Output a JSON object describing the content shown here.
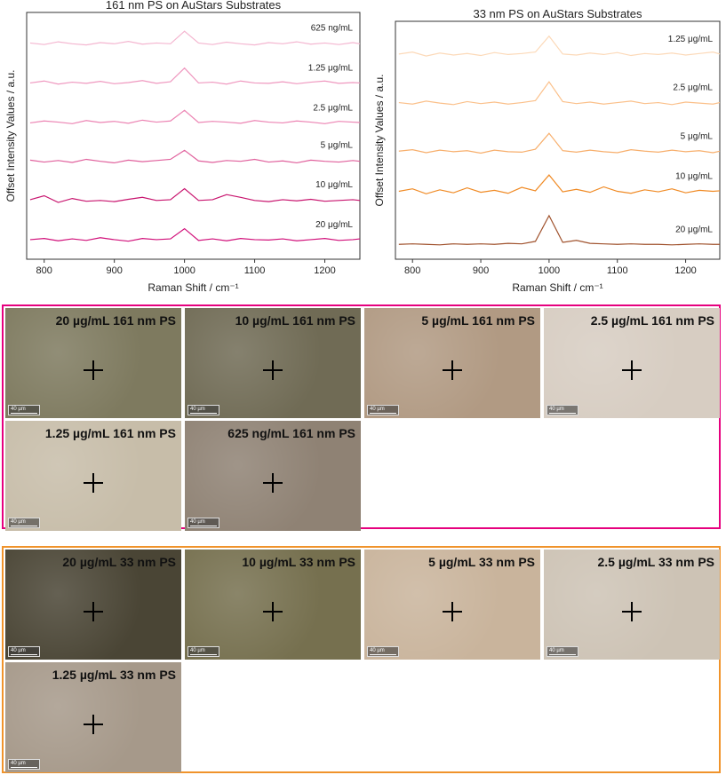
{
  "chart_data": [
    {
      "type": "line",
      "title": "161 nm PS on AuStars Substrates",
      "x_label": "Raman Shift / cm⁻¹",
      "y_label": "Offset Intensity Values / a.u.",
      "x": [
        780,
        800,
        820,
        840,
        860,
        880,
        900,
        920,
        940,
        960,
        980,
        1000,
        1020,
        1040,
        1060,
        1080,
        1100,
        1120,
        1140,
        1160,
        1180,
        1200,
        1220,
        1240,
        1250
      ],
      "xlim": [
        775,
        1250
      ],
      "ylim": [
        0,
        6.3
      ],
      "xticks": [
        800,
        900,
        1000,
        1100,
        1200
      ],
      "series": [
        {
          "name": "625 ng/mL",
          "color": "#f4b6d0",
          "values": [
            5.52,
            5.48,
            5.55,
            5.5,
            5.47,
            5.53,
            5.5,
            5.56,
            5.49,
            5.52,
            5.5,
            5.82,
            5.52,
            5.48,
            5.54,
            5.5,
            5.47,
            5.53,
            5.5,
            5.55,
            5.49,
            5.52,
            5.48,
            5.53,
            5.5
          ]
        },
        {
          "name": "1.25 μg/mL",
          "color": "#ef98bf",
          "values": [
            4.5,
            4.55,
            4.47,
            4.52,
            4.49,
            4.54,
            4.48,
            4.51,
            4.56,
            4.49,
            4.53,
            4.88,
            4.5,
            4.52,
            4.47,
            4.55,
            4.5,
            4.49,
            4.53,
            4.48,
            4.52,
            4.55,
            4.49,
            4.51,
            4.5
          ]
        },
        {
          "name": "2.5 μg/mL",
          "color": "#ec84b3",
          "values": [
            3.48,
            3.53,
            3.5,
            3.46,
            3.54,
            3.49,
            3.52,
            3.47,
            3.55,
            3.5,
            3.53,
            3.8,
            3.49,
            3.52,
            3.5,
            3.47,
            3.54,
            3.5,
            3.48,
            3.53,
            3.5,
            3.46,
            3.52,
            3.5,
            3.49
          ]
        },
        {
          "name": "5 μg/mL",
          "color": "#e0609c",
          "values": [
            2.53,
            2.48,
            2.52,
            2.47,
            2.55,
            2.5,
            2.46,
            2.53,
            2.49,
            2.52,
            2.55,
            2.78,
            2.51,
            2.47,
            2.52,
            2.5,
            2.55,
            2.48,
            2.51,
            2.46,
            2.53,
            2.5,
            2.48,
            2.52,
            2.5
          ]
        },
        {
          "name": "10 μg/mL",
          "color": "#c8146e",
          "values": [
            1.52,
            1.62,
            1.45,
            1.55,
            1.48,
            1.5,
            1.47,
            1.53,
            1.58,
            1.5,
            1.52,
            1.8,
            1.5,
            1.52,
            1.65,
            1.58,
            1.5,
            1.47,
            1.52,
            1.49,
            1.53,
            1.48,
            1.5,
            1.52,
            1.5
          ]
        },
        {
          "name": "20 μg/mL",
          "color": "#d1107a",
          "values": [
            0.5,
            0.53,
            0.47,
            0.52,
            0.48,
            0.55,
            0.5,
            0.46,
            0.53,
            0.5,
            0.52,
            0.78,
            0.48,
            0.52,
            0.47,
            0.53,
            0.5,
            0.49,
            0.52,
            0.47,
            0.5,
            0.53,
            0.48,
            0.5,
            0.52
          ]
        }
      ]
    },
    {
      "type": "line",
      "title": "33 nm PS on AuStars Substrates",
      "x_label": "Raman Shift / cm⁻¹",
      "y_label": "Offset Intensity Values / a.u.",
      "x": [
        780,
        800,
        820,
        840,
        860,
        880,
        900,
        920,
        940,
        960,
        980,
        1000,
        1020,
        1040,
        1060,
        1080,
        1100,
        1120,
        1140,
        1160,
        1180,
        1200,
        1220,
        1240,
        1250
      ],
      "xlim": [
        775,
        1250
      ],
      "ylim": [
        0,
        4.8
      ],
      "xticks": [
        800,
        900,
        1000,
        1100,
        1200
      ],
      "series": [
        {
          "name": "1.25 μg/mL",
          "color": "#fcd9b8",
          "values": [
            4.14,
            4.18,
            4.1,
            4.16,
            4.12,
            4.15,
            4.11,
            4.17,
            4.13,
            4.15,
            4.18,
            4.5,
            4.14,
            4.12,
            4.16,
            4.13,
            4.17,
            4.11,
            4.15,
            4.13,
            4.16,
            4.12,
            4.15,
            4.18,
            4.14
          ]
        },
        {
          "name": "2.5 μg/mL",
          "color": "#fbc08a",
          "values": [
            3.16,
            3.13,
            3.19,
            3.15,
            3.12,
            3.18,
            3.14,
            3.17,
            3.13,
            3.16,
            3.2,
            3.58,
            3.18,
            3.14,
            3.17,
            3.13,
            3.16,
            3.19,
            3.14,
            3.16,
            3.12,
            3.17,
            3.15,
            3.13,
            3.16
          ]
        },
        {
          "name": "5 μg/mL",
          "color": "#f7ae6b",
          "values": [
            2.18,
            2.21,
            2.15,
            2.2,
            2.17,
            2.19,
            2.14,
            2.2,
            2.17,
            2.16,
            2.22,
            2.54,
            2.19,
            2.16,
            2.2,
            2.17,
            2.15,
            2.21,
            2.18,
            2.16,
            2.2,
            2.17,
            2.19,
            2.15,
            2.18
          ]
        },
        {
          "name": "10 μg/mL",
          "color": "#f08a24",
          "values": [
            1.37,
            1.42,
            1.32,
            1.4,
            1.34,
            1.44,
            1.35,
            1.39,
            1.33,
            1.45,
            1.38,
            1.7,
            1.36,
            1.41,
            1.35,
            1.46,
            1.37,
            1.33,
            1.4,
            1.36,
            1.42,
            1.34,
            1.39,
            1.37,
            1.38
          ]
        },
        {
          "name": "20 μg/mL",
          "color": "#a0522d",
          "values": [
            0.3,
            0.31,
            0.3,
            0.29,
            0.31,
            0.3,
            0.31,
            0.3,
            0.32,
            0.31,
            0.36,
            0.88,
            0.34,
            0.38,
            0.32,
            0.31,
            0.3,
            0.31,
            0.3,
            0.3,
            0.29,
            0.3,
            0.31,
            0.3,
            0.3
          ]
        }
      ]
    }
  ],
  "micrographs": [
    {
      "border_color": "#e6007e",
      "panels": [
        {
          "label": "20 µg/mL 161 nm PS",
          "scale_bar": "40 µm",
          "color": "#7e7a5f"
        },
        {
          "label": "10 µg/mL 161 nm PS",
          "scale_bar": "40 µm",
          "color": "#706b55"
        },
        {
          "label": "5 µg/mL 161 nm PS",
          "scale_bar": "40 µm",
          "color": "#b19a83"
        },
        {
          "label": "2.5 µg/mL 161 nm PS",
          "scale_bar": "40 µm",
          "color": "#d7cdc2"
        },
        {
          "label": "1.25 µg/mL 161 nm PS",
          "scale_bar": "40 µm",
          "color": "#c7bda9"
        },
        {
          "label": "625 ng/mL 161 nm PS",
          "scale_bar": "40 µm",
          "color": "#8f8274"
        }
      ]
    },
    {
      "border_color": "#f0932b",
      "panels": [
        {
          "label": "20 µg/mL 33 nm PS",
          "scale_bar": "40 µm",
          "color": "#4a4535"
        },
        {
          "label": "10 µg/mL 33 nm PS",
          "scale_bar": "40 µm",
          "color": "#76704f"
        },
        {
          "label": "5 µg/mL 33 nm PS",
          "scale_bar": "40 µm",
          "color": "#c9b49c"
        },
        {
          "label": "2.5 µg/mL 33 nm PS",
          "scale_bar": "40 µm",
          "color": "#cdc3b5"
        },
        {
          "label": "1.25 µg/mL 33 nm PS",
          "scale_bar": "40 µm",
          "color": "#a6998a"
        }
      ]
    }
  ]
}
